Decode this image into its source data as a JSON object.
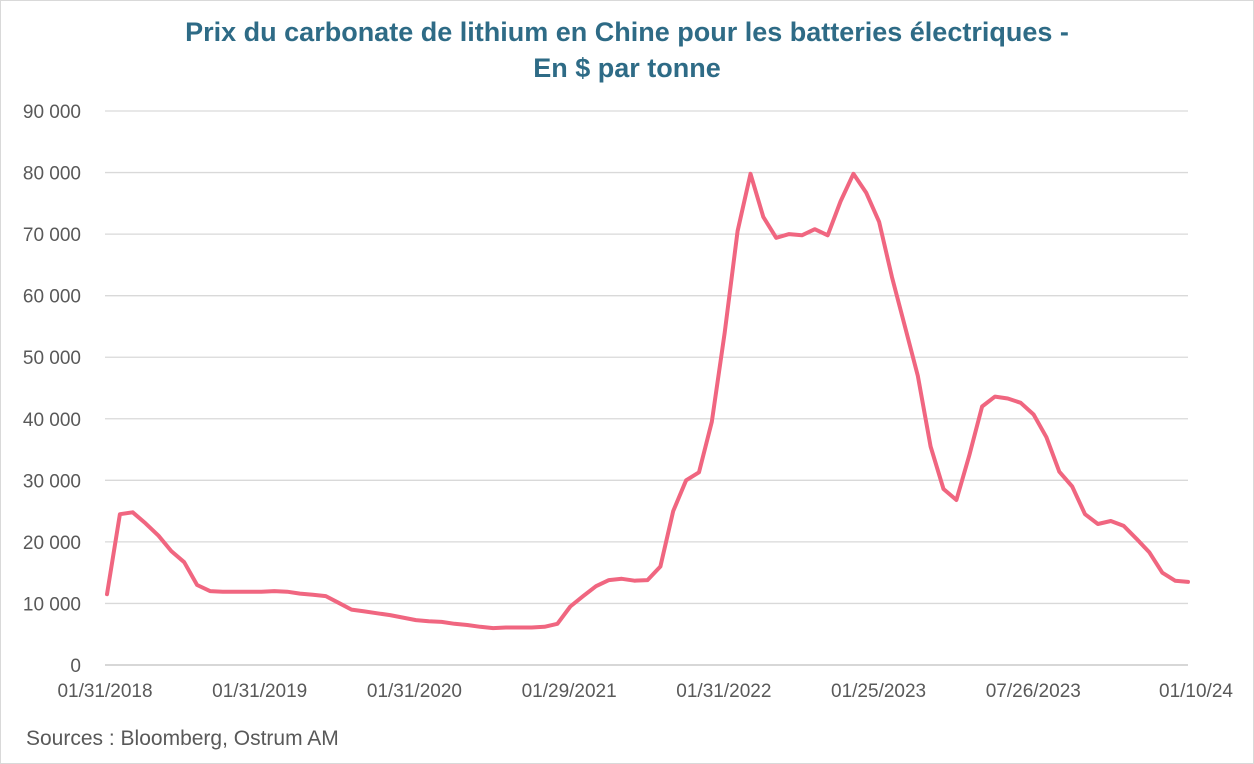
{
  "chart_data": {
    "type": "line",
    "title_line1": "Prix du carbonate de lithium en Chine pour les batteries électriques -",
    "title_line2": "En $ par tonne",
    "source": "Sources : Bloomberg,  Ostrum AM",
    "ylim": [
      0,
      90000
    ],
    "y_ticks": [
      0,
      10000,
      20000,
      30000,
      40000,
      50000,
      60000,
      70000,
      80000,
      90000
    ],
    "y_tick_labels": [
      "0",
      "10 000",
      "20 000",
      "30 000",
      "40 000",
      "50 000",
      "60 000",
      "70 000",
      "80 000",
      "90 000"
    ],
    "x_tick_labels": [
      "01/31/2018",
      "01/31/2019",
      "01/31/2020",
      "01/29/2021",
      "01/31/2022",
      "01/25/2023",
      "07/26/2023",
      "01/10/24"
    ],
    "grid": true,
    "line_color": "#f06680",
    "series": [
      {
        "values": [
          11500,
          24500,
          24800,
          23000,
          21000,
          18500,
          16700,
          13000,
          12000,
          11900,
          11900,
          11900,
          11900,
          12000,
          11900,
          11600,
          11400,
          11200,
          10100,
          9000,
          8700,
          8400,
          8100,
          7700,
          7300,
          7100,
          7000,
          6700,
          6500,
          6200,
          6000,
          6100,
          6100,
          6100,
          6200,
          6700,
          9500,
          11200,
          12800,
          13800,
          14000,
          13700,
          13800,
          16000,
          25000,
          30000,
          31300,
          39500,
          54000,
          70500,
          79800,
          72800,
          69400,
          70000,
          69800,
          70800,
          69800,
          75300,
          79800,
          76700,
          72000,
          63000,
          55000,
          47000,
          35500,
          28600,
          26800,
          34000,
          42000,
          43600,
          43300,
          42600,
          40700,
          37000,
          31400,
          29000,
          24500,
          22900,
          23400,
          22600,
          20500,
          18300,
          15000,
          13700,
          13500
        ]
      }
    ]
  }
}
